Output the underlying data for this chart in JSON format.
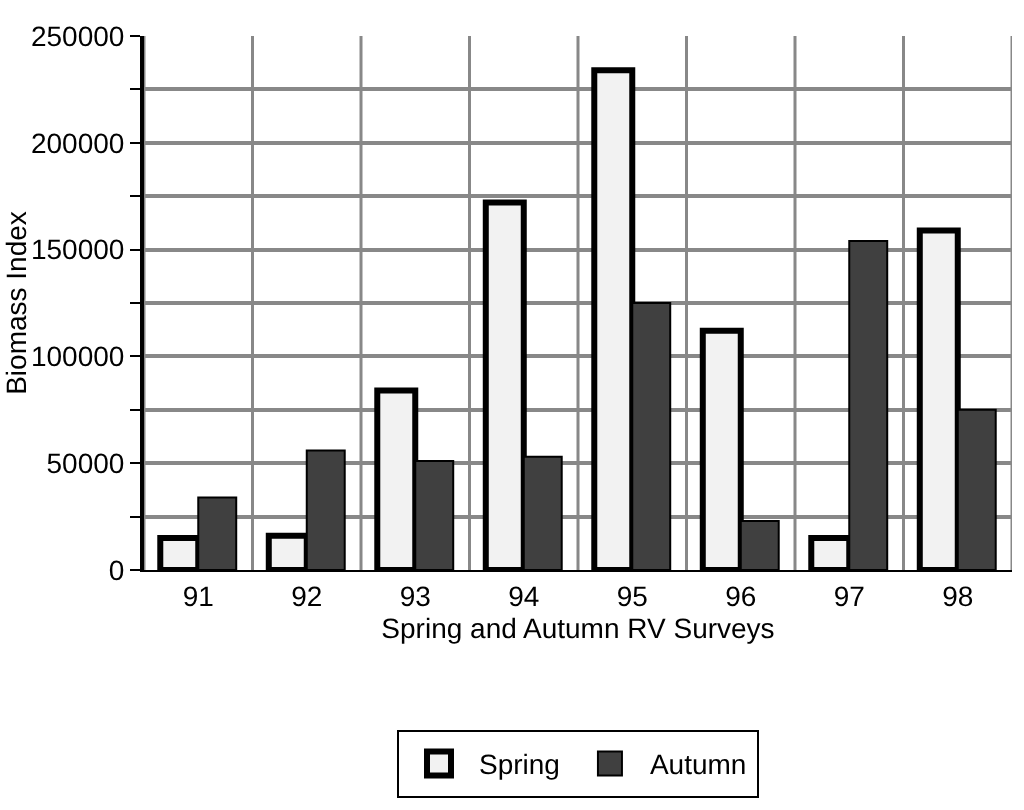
{
  "chart_data": {
    "type": "bar",
    "xlabel": "Spring and Autumn RV Surveys",
    "ylabel": "Biomass Index",
    "categories": [
      "91",
      "92",
      "93",
      "94",
      "95",
      "96",
      "97",
      "98"
    ],
    "series": [
      {
        "name": "Spring",
        "color": "#f2f2f2",
        "values": [
          15000,
          16000,
          84000,
          172000,
          234000,
          112000,
          15000,
          159000
        ]
      },
      {
        "name": "Autumn",
        "color": "#404040",
        "values": [
          34000,
          56000,
          51000,
          53000,
          125000,
          23000,
          154000,
          75000
        ]
      }
    ],
    "ylim": [
      0,
      250000
    ],
    "yticks": [
      0,
      {
        "value": 25000,
        "label": null
      },
      50000,
      {
        "value": 75000,
        "label": null
      },
      100000,
      {
        "value": 125000,
        "label": null
      },
      150000,
      {
        "value": 175000,
        "label": null
      },
      200000,
      {
        "value": 225000,
        "label": null
      },
      250000
    ],
    "grid": true,
    "legend": "bottom"
  }
}
